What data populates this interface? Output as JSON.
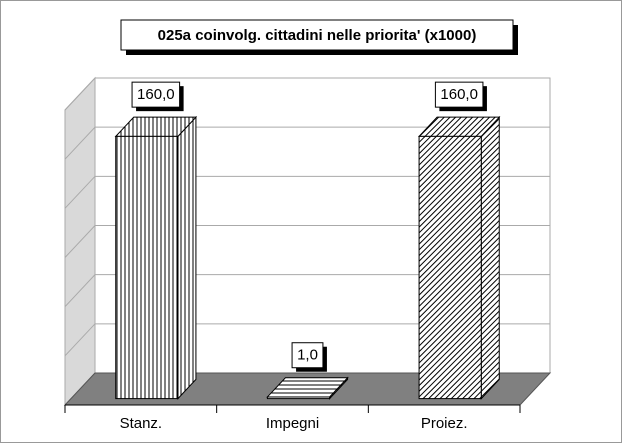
{
  "chart_data": {
    "type": "bar3d",
    "title": "025a coinvolg. cittadini nelle priorita' (x1000)",
    "categories": [
      "Stanz.",
      "Impegni",
      "Proiez."
    ],
    "values": [
      160,
      1,
      160
    ],
    "value_labels": [
      "160,0",
      "1,0",
      "160,0"
    ],
    "ylim": [
      0,
      180
    ],
    "yticks": [
      0,
      30,
      60,
      90,
      120,
      150,
      180
    ],
    "grid": true
  }
}
